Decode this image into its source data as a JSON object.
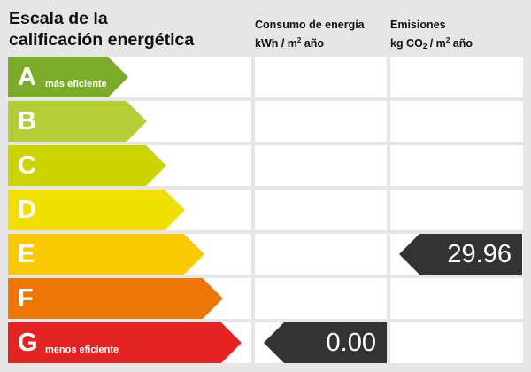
{
  "title_line1": "Escala de la",
  "title_line2": "calificación energética",
  "consumo_header": {
    "line1": "Consumo de energía",
    "unit_a": "kWh / m",
    "unit_sup": "2",
    "unit_b": " año"
  },
  "emisiones_header": {
    "line1": "Emisiones",
    "unit_a": "kg CO",
    "unit_sub": "2",
    "unit_b": " / m",
    "unit_sup": "2",
    "unit_c": " año"
  },
  "classes": [
    {
      "letter": "A",
      "note": "más eficiente",
      "color": "#7aac2a"
    },
    {
      "letter": "B",
      "note": "",
      "color": "#b5cd36"
    },
    {
      "letter": "C",
      "note": "",
      "color": "#cdd300"
    },
    {
      "letter": "D",
      "note": "",
      "color": "#f0df00"
    },
    {
      "letter": "E",
      "note": "",
      "color": "#fbc900"
    },
    {
      "letter": "F",
      "note": "",
      "color": "#ed7607"
    },
    {
      "letter": "G",
      "note": "menos eficiente",
      "color": "#e32422"
    }
  ],
  "consumo_rating": {
    "class": "G",
    "value": "0.00"
  },
  "emisiones_rating": {
    "class": "E",
    "value": "29.96"
  },
  "pointer_color": "#333333"
}
